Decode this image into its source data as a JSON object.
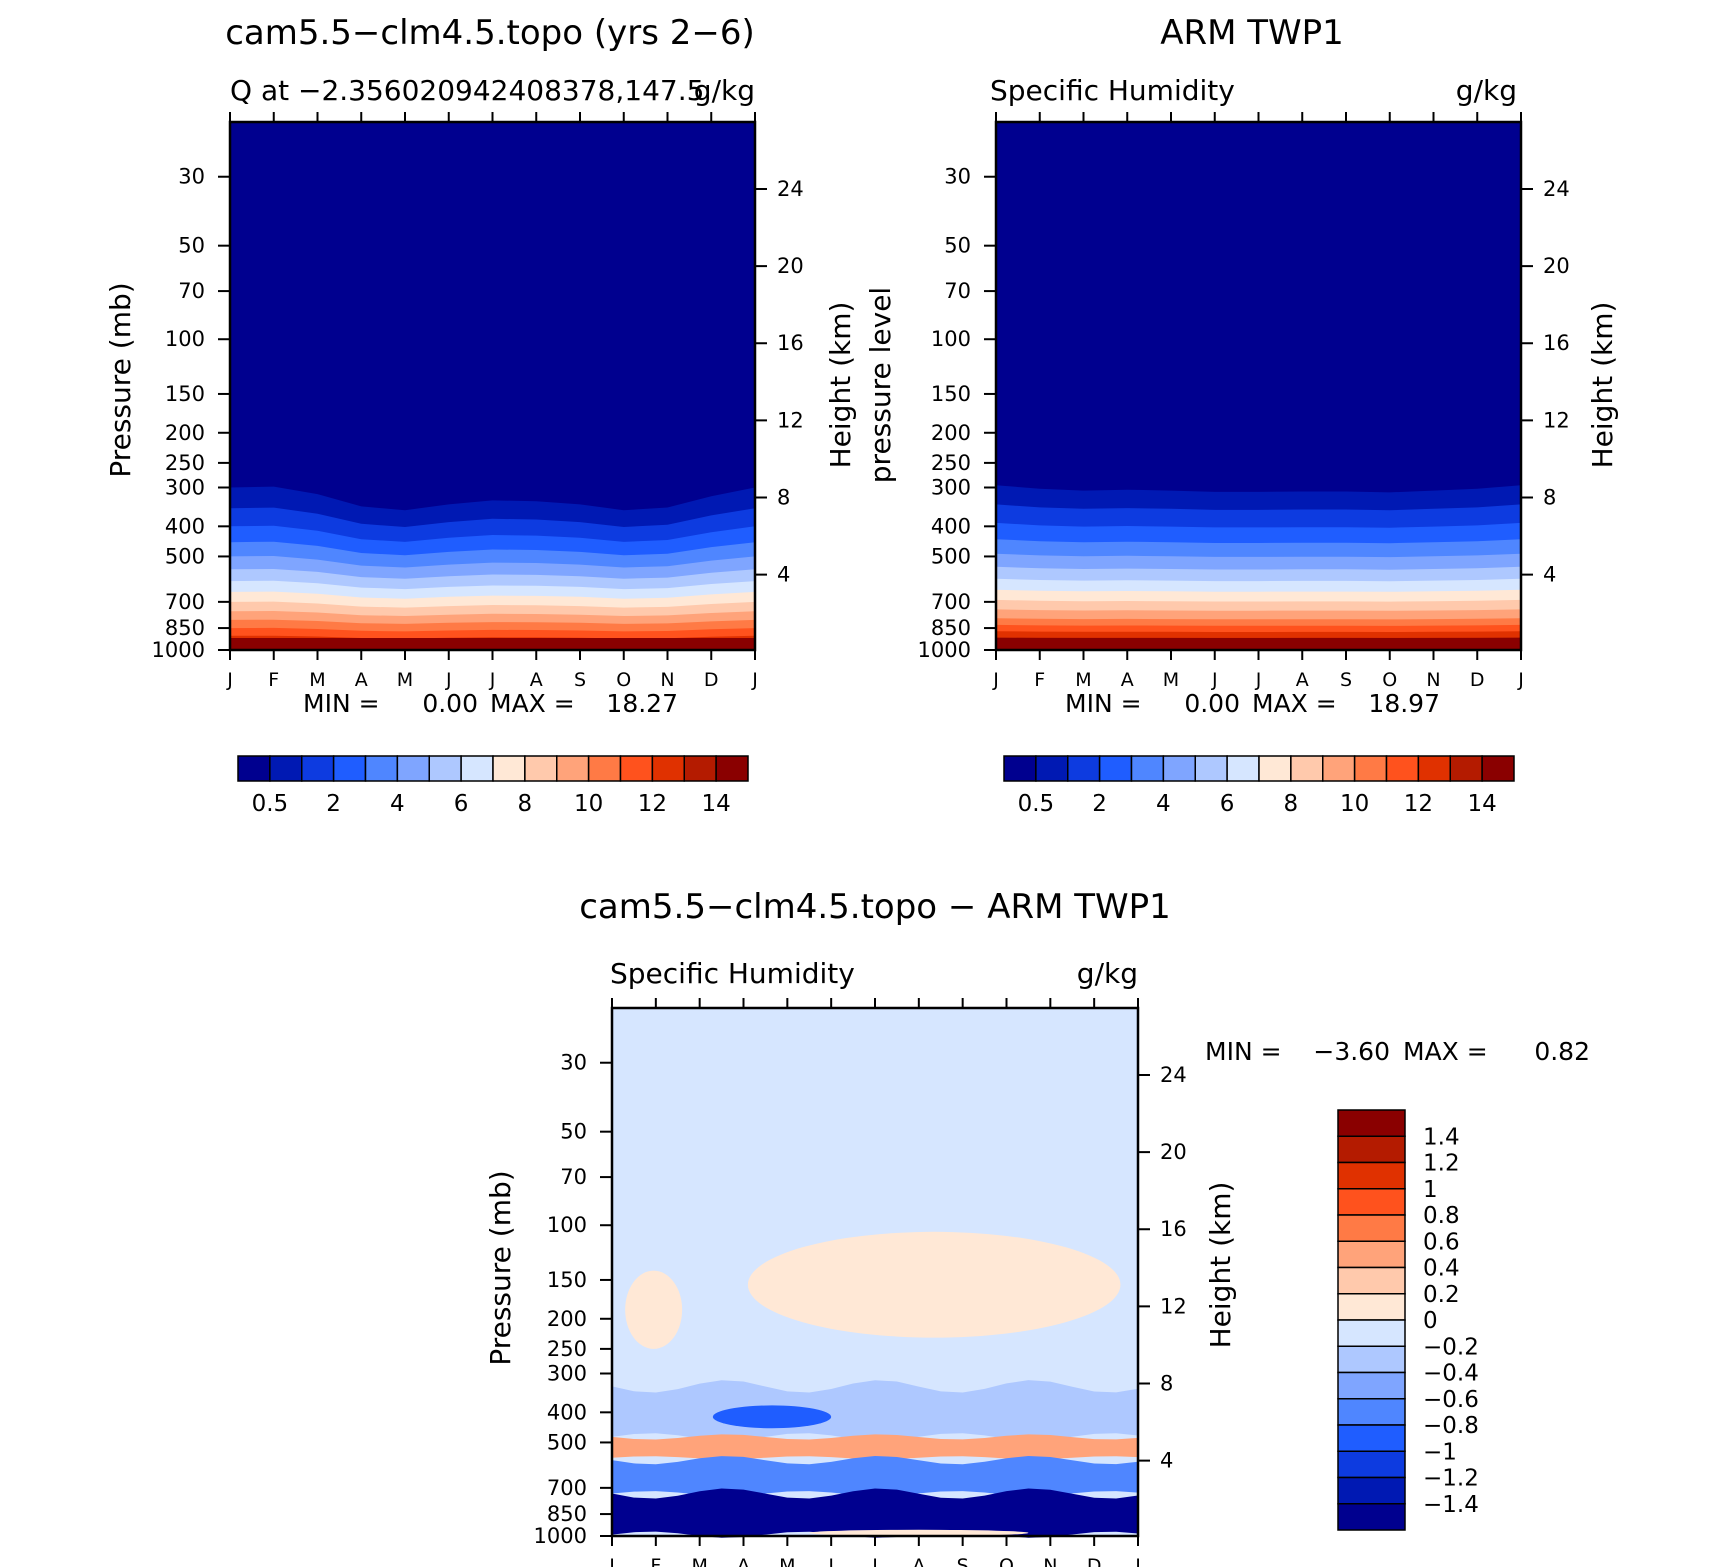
{
  "colors": {
    "seq": [
      "#00008f",
      "#0019b3",
      "#0d3be0",
      "#1f5dff",
      "#4f86ff",
      "#7fa5ff",
      "#aec8ff",
      "#d6e6ff",
      "#ffe8d6",
      "#ffc9ac",
      "#ffa37a",
      "#ff7a45",
      "#ff521d",
      "#e03100",
      "#b41b00",
      "#8a0000"
    ],
    "div": [
      "#00008f",
      "#0019b3",
      "#0d3be0",
      "#1f5dff",
      "#4f86ff",
      "#7fa5ff",
      "#aec8ff",
      "#d6e6ff",
      "#ffe8d6",
      "#ffc9ac",
      "#ffa37a",
      "#ff7a45",
      "#ff521d",
      "#e03100",
      "#b41b00",
      "#8a0000"
    ]
  },
  "chart_data": [
    {
      "id": "model",
      "type": "heatmap",
      "title": "cam5.5−clm4.5.topo (yrs 2−6)",
      "left_subtitle": "Q at −2.356020942408378,147.5",
      "right_subtitle": "g/kg",
      "ylabel": "Pressure (mb)",
      "right_label": "Height (km)",
      "x_ticks": [
        "J",
        "F",
        "M",
        "A",
        "M",
        "J",
        "J",
        "A",
        "S",
        "O",
        "N",
        "D",
        "J"
      ],
      "y_ticks": [
        "30",
        "50",
        "70",
        "100",
        "150",
        "200",
        "250",
        "300",
        "400",
        "500",
        "700",
        "850",
        "1000"
      ],
      "y_values": [
        30,
        50,
        70,
        100,
        150,
        200,
        250,
        300,
        400,
        500,
        700,
        850,
        1000
      ],
      "ylim": [
        20,
        1000
      ],
      "height_ticks": [
        "24",
        "20",
        "16",
        "12",
        "8",
        "4"
      ],
      "height_values": [
        24,
        20,
        16,
        12,
        8,
        4
      ],
      "min_label": "MIN =",
      "min_value": "0.00",
      "max_label": "MAX =",
      "max_value": "18.27",
      "colorbar_labels": [
        "0.5",
        "2",
        "4",
        "6",
        "8",
        "10",
        "12",
        "14"
      ],
      "contour_levels": [
        0.25,
        0.5,
        1,
        2,
        3,
        4,
        5,
        6,
        7,
        8,
        9,
        10,
        11,
        12,
        13,
        14,
        15
      ],
      "band_pressures_jan": [
        300,
        350,
        400,
        450,
        500,
        550,
        600,
        650,
        700,
        750,
        800,
        850,
        900,
        940,
        975
      ],
      "seasonal_shift_mb": [
        0,
        -2,
        15,
        45,
        55,
        40,
        30,
        32,
        40,
        55,
        48,
        20,
        0
      ]
    },
    {
      "id": "obs",
      "type": "heatmap",
      "title": "ARM TWP1",
      "left_subtitle": "Specific Humidity",
      "right_subtitle": "g/kg",
      "ylabel": "pressure level",
      "right_label": "Height (km)",
      "x_ticks": [
        "J",
        "F",
        "M",
        "A",
        "M",
        "J",
        "J",
        "A",
        "S",
        "O",
        "N",
        "D",
        "J"
      ],
      "y_ticks": [
        "30",
        "50",
        "70",
        "100",
        "150",
        "200",
        "250",
        "300",
        "400",
        "500",
        "700",
        "850",
        "1000"
      ],
      "y_values": [
        30,
        50,
        70,
        100,
        150,
        200,
        250,
        300,
        400,
        500,
        700,
        850,
        1000
      ],
      "ylim": [
        20,
        1000
      ],
      "height_ticks": [
        "24",
        "20",
        "16",
        "12",
        "8",
        "4"
      ],
      "height_values": [
        24,
        20,
        16,
        12,
        8,
        4
      ],
      "min_label": "MIN =",
      "min_value": "0.00",
      "max_label": "MAX =",
      "max_value": "18.97",
      "colorbar_labels": [
        "0.5",
        "2",
        "4",
        "6",
        "8",
        "10",
        "12",
        "14"
      ],
      "contour_levels": [
        0.25,
        0.5,
        1,
        2,
        3,
        4,
        5,
        6,
        7,
        8,
        9,
        10,
        11,
        12,
        13,
        14,
        15
      ],
      "band_pressures_jan": [
        295,
        340,
        390,
        440,
        490,
        540,
        590,
        640,
        690,
        740,
        790,
        830,
        870,
        910,
        950
      ],
      "seasonal_shift_mb": [
        0,
        8,
        12,
        10,
        12,
        15,
        15,
        14,
        14,
        16,
        12,
        8,
        0
      ]
    },
    {
      "id": "diff",
      "type": "heatmap",
      "title": "cam5.5−clm4.5.topo − ARM TWP1",
      "left_subtitle": "Specific Humidity",
      "right_subtitle": "g/kg",
      "ylabel": "Pressure (mb)",
      "right_label": "Height (km)",
      "x_ticks": [
        "J",
        "F",
        "M",
        "A",
        "M",
        "J",
        "J",
        "A",
        "S",
        "O",
        "N",
        "D",
        "J"
      ],
      "y_ticks": [
        "30",
        "50",
        "70",
        "100",
        "150",
        "200",
        "250",
        "300",
        "400",
        "500",
        "700",
        "850",
        "1000"
      ],
      "y_values": [
        30,
        50,
        70,
        100,
        150,
        200,
        250,
        300,
        400,
        500,
        700,
        850,
        1000
      ],
      "ylim": [
        20,
        1000
      ],
      "height_ticks": [
        "24",
        "20",
        "16",
        "12",
        "8",
        "4"
      ],
      "height_values": [
        24,
        20,
        16,
        12,
        8,
        4
      ],
      "min_label": "MIN =",
      "min_value": "−3.60",
      "max_label": "MAX =",
      "max_value": "0.82",
      "colorbar_labels": [
        "1.4",
        "1.2",
        "1",
        "0.8",
        "0.6",
        "0.4",
        "0.2",
        "0",
        "−0.2",
        "−0.4",
        "−0.6",
        "−0.8",
        "−1",
        "−1.2",
        "−1.4"
      ],
      "contour_levels": [
        -1.4,
        -1.2,
        -1,
        -0.8,
        -0.6,
        -0.4,
        -0.2,
        0,
        0.2,
        0.4,
        0.6,
        0.8,
        1,
        1.2,
        1.4
      ],
      "background_value": -0.1,
      "features": [
        {
          "name": "upper-positive-east",
          "value": 0.1,
          "month_range": [
            3.1,
            11.6
          ],
          "p_range": [
            105,
            230
          ]
        },
        {
          "name": "upper-positive-west",
          "value": 0.1,
          "month_range": [
            0.3,
            1.6
          ],
          "p_range": [
            140,
            250
          ]
        },
        {
          "name": "mid-negative-band",
          "value": -0.3,
          "month_range": [
            0.0,
            12.0
          ],
          "p_range": [
            330,
            480
          ]
        },
        {
          "name": "mid-negative-core",
          "value": -0.9,
          "month_range": [
            2.3,
            5.0
          ],
          "p_range": [
            380,
            450
          ]
        },
        {
          "name": "mid-positive-500",
          "value": 0.5,
          "month_range": [
            0.0,
            12.0
          ],
          "p_range": [
            480,
            560
          ]
        },
        {
          "name": "low-negative-band",
          "value": -0.7,
          "month_range": [
            0.0,
            12.0
          ],
          "p_range": [
            570,
            730
          ]
        },
        {
          "name": "near-surface-strong-negative",
          "value": -1.6,
          "month_range": [
            0.0,
            12.0
          ],
          "p_range": [
            730,
            990
          ]
        },
        {
          "name": "surface-positive",
          "value": 0.05,
          "month_range": [
            4.5,
            9.5
          ],
          "p_range": [
            955,
            1000
          ]
        }
      ]
    }
  ]
}
